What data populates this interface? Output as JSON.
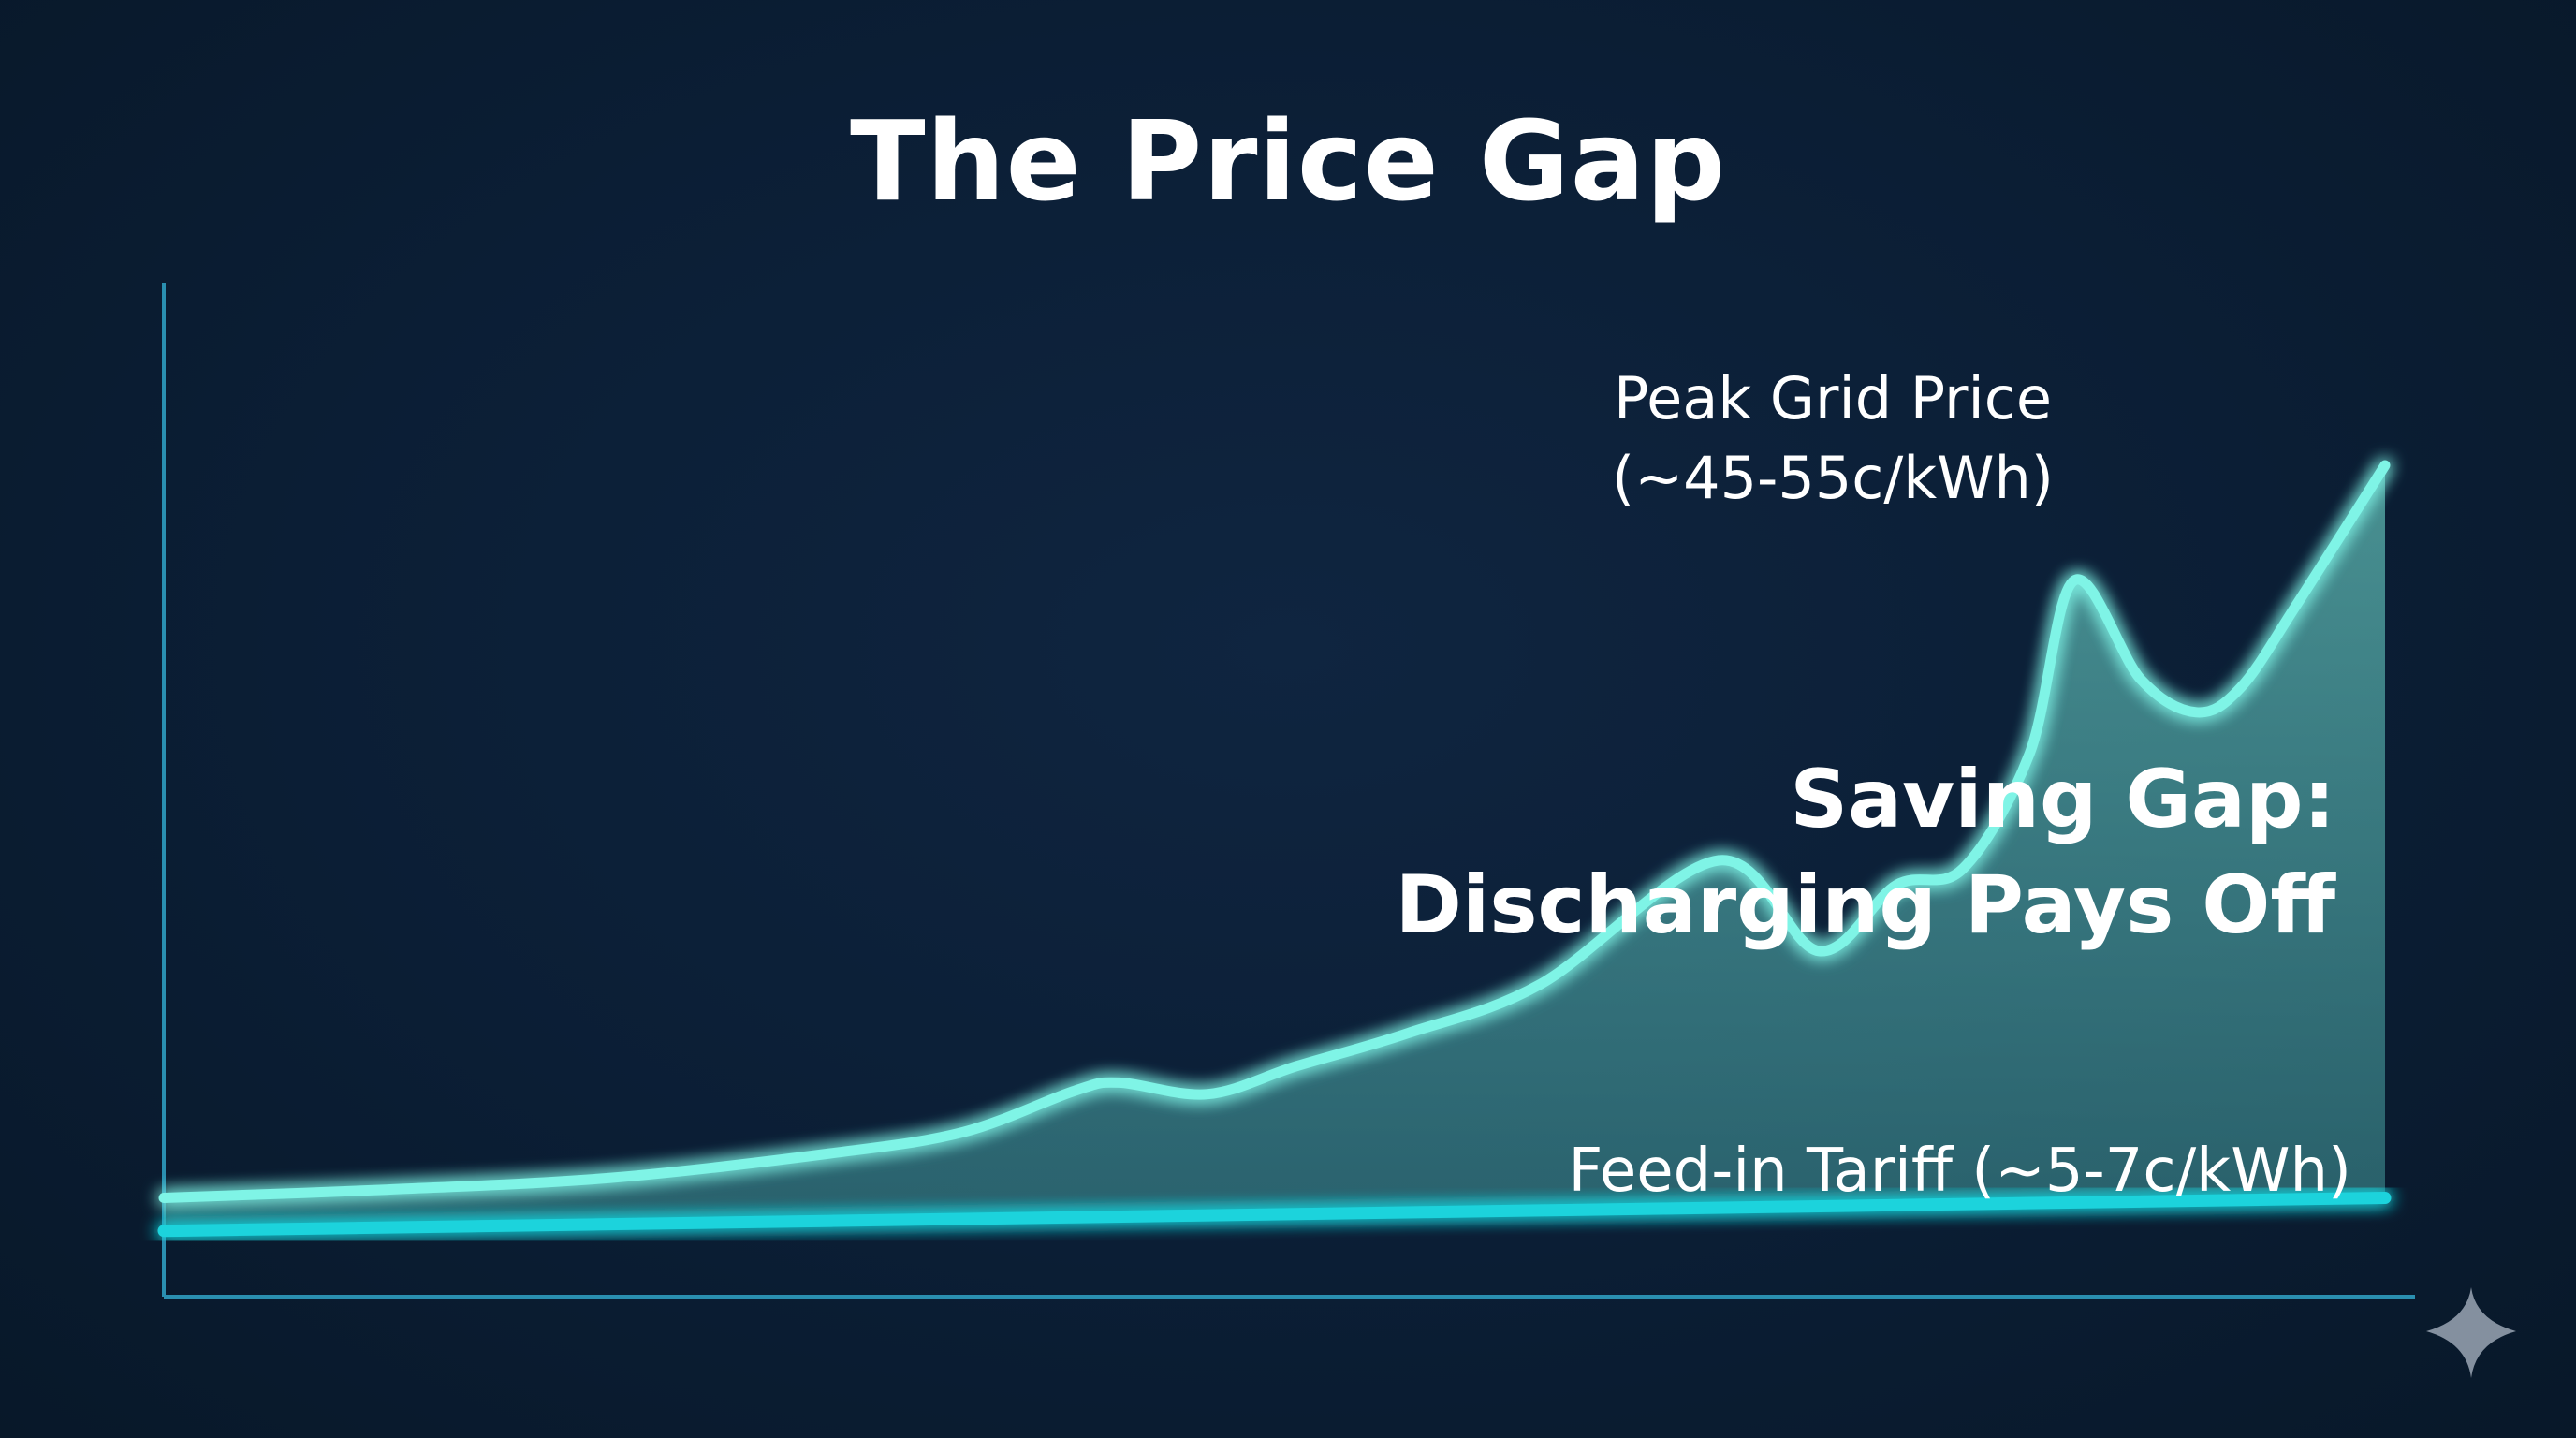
{
  "title": "The Price Gap",
  "chart_data": {
    "type": "area",
    "title": "The Price Gap",
    "xlabel": "",
    "ylabel": "",
    "ylim": [
      0,
      60
    ],
    "xlim": [
      0,
      100
    ],
    "grid": false,
    "series": [
      {
        "label": "Peak Grid Price (~45-55c/kWh)",
        "color": "#7ff4e6",
        "x": [
          0,
          10,
          20,
          30,
          36,
          41,
          43,
          47,
          51,
          56,
          62,
          70,
          74.5,
          78,
          81,
          84,
          86,
          89,
          91.5,
          93.5,
          96,
          100
        ],
        "values": [
          6.0,
          6.5,
          7.2,
          8.7,
          10.0,
          12.5,
          13.0,
          12.3,
          14.0,
          16.0,
          19.0,
          26.5,
          21.0,
          25.0,
          26.0,
          33.0,
          43.5,
          37.5,
          35.5,
          37.0,
          42.0,
          50.5
        ]
      },
      {
        "label": "Feed-in Tariff (~5-7c/kWh)",
        "color": "#1fd3dc",
        "x": [
          0,
          100
        ],
        "values": [
          4.0,
          6.0
        ]
      }
    ],
    "annotations": {
      "peak_line1": "Peak Grid Price",
      "peak_line2": "(~45-55c/kWh)",
      "gap_line1": "Saving Gap:",
      "gap_line2": "Discharging Pays Off",
      "feed_in": "Feed-in Tariff (~5-7c/kWh)"
    },
    "colors": {
      "peak": "#7ff4e6",
      "feed_in": "#1fd3dc",
      "fill": "#5fc8c0",
      "axis": "#2a8fb0"
    }
  },
  "icons": {
    "corner": "sparkle-icon"
  }
}
